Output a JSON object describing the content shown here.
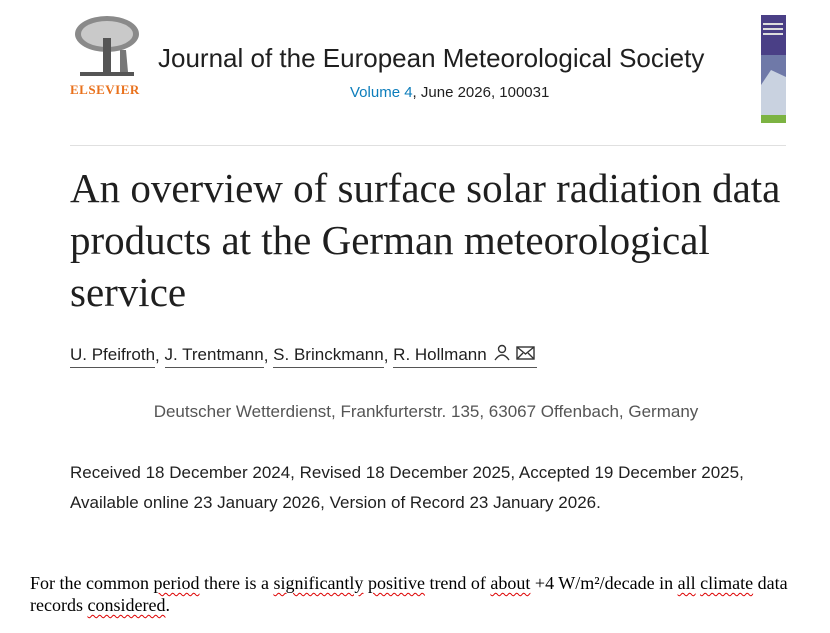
{
  "header": {
    "publisher": "ELSEVIER",
    "journal": "Journal of the European Meteorological Society",
    "volume": "Volume 4",
    "issue": ", June 2026, 100031"
  },
  "article": {
    "title": "An overview of surface solar radiation data products at the German meteorological service",
    "authors": [
      "U. Pfeifroth",
      "J. Trentmann",
      "S. Brinckmann",
      "R. Hollmann"
    ],
    "author_separator": ", ",
    "affiliation": "Deutscher Wetterdienst, Frankfurterstr. 135, 63067 Offenbach, Germany",
    "dates": "Received 18 December 2024, Revised 18 December 2025, Accepted 19 December 2025, Available online 23 January 2026, Version of Record 23 January 2026."
  },
  "note": [
    {
      "text": "For the common ",
      "misspelled": false
    },
    {
      "text": "period",
      "misspelled": true
    },
    {
      "text": " there is a ",
      "misspelled": false
    },
    {
      "text": "significantly",
      "misspelled": true
    },
    {
      "text": " ",
      "misspelled": false
    },
    {
      "text": "positive",
      "misspelled": true
    },
    {
      "text": " trend of ",
      "misspelled": false
    },
    {
      "text": "about",
      "misspelled": true
    },
    {
      "text": " +4 W/m²/decade in ",
      "misspelled": false
    },
    {
      "text": "all",
      "misspelled": true
    },
    {
      "text": " ",
      "misspelled": false
    },
    {
      "text": "climate",
      "misspelled": true
    },
    {
      "text": " data records ",
      "misspelled": false
    },
    {
      "text": "considered",
      "misspelled": true
    },
    {
      "text": ".",
      "misspelled": false
    }
  ]
}
